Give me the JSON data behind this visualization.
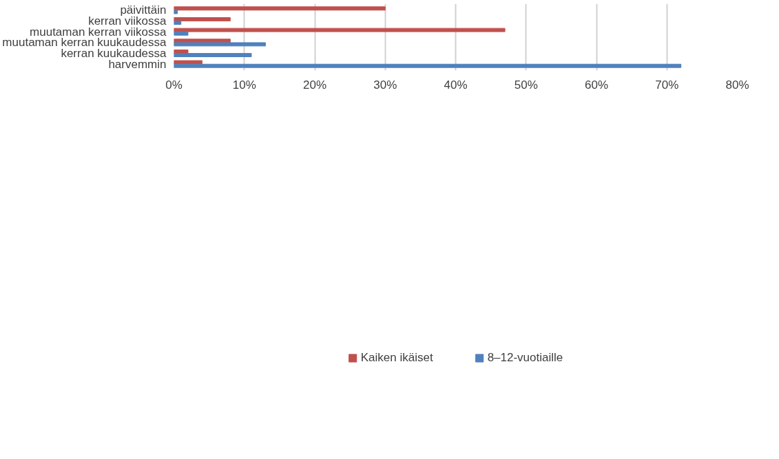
{
  "chart_data": {
    "type": "bar",
    "orientation": "horizontal",
    "categories": [
      "päivittäin",
      "kerran viikossa",
      "muutaman kerran viikossa",
      "muutaman kerran kuukaudessa",
      "kerran kuukaudessa",
      "harvemmin"
    ],
    "series": [
      {
        "name": "Kaiken ikäiset",
        "color": "#c0504d",
        "values": [
          30,
          8,
          47,
          8,
          2,
          4
        ]
      },
      {
        "name": "8–12-vuotiaille",
        "color": "#4f81bd",
        "values": [
          0.5,
          1,
          2,
          13,
          11,
          72
        ]
      }
    ],
    "xlim": [
      0,
      80
    ],
    "xticks": [
      {
        "value": 0,
        "label": "0%"
      },
      {
        "value": 10,
        "label": "10%"
      },
      {
        "value": 20,
        "label": "20%"
      },
      {
        "value": 30,
        "label": "30%"
      },
      {
        "value": 40,
        "label": "40%"
      },
      {
        "value": 50,
        "label": "50%"
      },
      {
        "value": 60,
        "label": "60%"
      },
      {
        "value": 70,
        "label": "70%"
      },
      {
        "value": 80,
        "label": "80%"
      }
    ],
    "grid": "x",
    "legend": "bottom"
  }
}
